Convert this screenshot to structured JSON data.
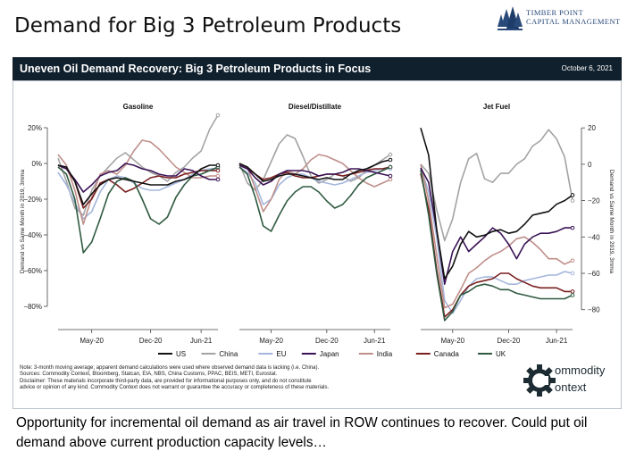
{
  "slide_title": "Demand for Big 3 Petroleum Products",
  "logo": {
    "line1": "TIMBER POINT",
    "line2": "CAPITAL MANAGEMENT",
    "icon": "tree-cluster-icon",
    "color": "#2a4a7a"
  },
  "banner": {
    "title": "Uneven Oil Demand Recovery: Big 3 Petroleum Products in Focus",
    "date": "October 6, 2021"
  },
  "footnote": [
    "Note: 3-month moving average; apparent demand calculations were used where observed demand data is lacking (i.e. China).",
    "Sources: Commodity Context, Bloomberg, Statcan, EIA, NBS, China Customs, PPAC, BEIS, METI, Eurostat.",
    "Disclaimer: These materials incorporate third-party data, are provided for informational purposes only, and do not constitute",
    "advice or opinion of any kind. Commodity Context does not warrant or guarantee the accuracy or completeness of these materials."
  ],
  "commodity_logo": {
    "line1": "ommodity",
    "line2": "ontext",
    "icon": "gear-icon"
  },
  "caption": "Opportunity for incremental oil demand as air travel in ROW continues to recover. Could put oil demand above current production capacity levels…",
  "chart_data": [
    {
      "type": "line",
      "title": "Gasoline",
      "ylabel": "Demand vs Same Month in 2019, 3mma",
      "ylim": [
        -90,
        25
      ],
      "yticks": [
        20,
        0,
        -20,
        -40,
        -60,
        -80
      ],
      "ytick_labels": [
        "20%",
        "0%",
        "−20%",
        "−40%",
        "−60%",
        "−80%"
      ],
      "x": [
        "2020-01",
        "2020-02",
        "2020-03",
        "2020-04",
        "2020-05",
        "2020-06",
        "2020-07",
        "2020-08",
        "2020-09",
        "2020-10",
        "2020-11",
        "2020-12",
        "2021-01",
        "2021-02",
        "2021-03",
        "2021-04",
        "2021-05",
        "2021-06",
        "2021-07",
        "2021-08"
      ],
      "xticks": [
        "2020-05",
        "2020-12",
        "2021-06"
      ],
      "xtick_labels": [
        "May-20",
        "Dec-20",
        "Jun-21"
      ],
      "series": [
        {
          "name": "US",
          "values": [
            -1,
            -2,
            -10,
            -23,
            -17,
            -12,
            -9,
            -8,
            -9,
            -10,
            -11,
            -12,
            -12,
            -12,
            -10,
            -9,
            -7,
            -3,
            -1,
            -1
          ]
        },
        {
          "name": "China",
          "values": [
            3,
            -10,
            -25,
            -29,
            -15,
            -7,
            -2,
            3,
            6,
            2,
            -2,
            -5,
            -7,
            -10,
            -5,
            -2,
            3,
            7,
            19,
            27
          ]
        },
        {
          "name": "EU",
          "values": [
            -5,
            -12,
            -22,
            -31,
            -27,
            -16,
            -9,
            -7,
            -8,
            -11,
            -14,
            -15,
            -15,
            -13,
            -11,
            -9,
            -6,
            -4,
            -3,
            -3
          ]
        },
        {
          "name": "Japan",
          "values": [
            -1,
            -3,
            -9,
            -16,
            -12,
            -7,
            -5,
            -4,
            0,
            -1,
            -3,
            -4,
            -6,
            -7,
            -7,
            -3,
            -4,
            -7,
            -9,
            -9
          ]
        },
        {
          "name": "India",
          "values": [
            5,
            -1,
            -15,
            -34,
            -19,
            -6,
            -4,
            -6,
            -1,
            7,
            13,
            12,
            8,
            3,
            -2,
            -5,
            -8,
            -8,
            -7,
            -7
          ]
        },
        {
          "name": "Canada",
          "values": [
            -1,
            -3,
            -10,
            -25,
            -20,
            -11,
            -9,
            -12,
            -16,
            -14,
            -11,
            -8,
            -7,
            -8,
            -8,
            -6,
            -5,
            -4,
            -4,
            -4
          ]
        },
        {
          "name": "UK",
          "values": [
            -2,
            -6,
            -20,
            -50,
            -44,
            -31,
            -17,
            -10,
            -8,
            -10,
            -20,
            -31,
            -34,
            -30,
            -19,
            -12,
            -7,
            -6,
            -4,
            -2
          ]
        }
      ]
    },
    {
      "type": "line",
      "title": "Diesel/Distillate",
      "ylim": [
        -90,
        25
      ],
      "x": [
        "2020-01",
        "2020-02",
        "2020-03",
        "2020-04",
        "2020-05",
        "2020-06",
        "2020-07",
        "2020-08",
        "2020-09",
        "2020-10",
        "2020-11",
        "2020-12",
        "2021-01",
        "2021-02",
        "2021-03",
        "2021-04",
        "2021-05",
        "2021-06",
        "2021-07",
        "2021-08"
      ],
      "xticks": [
        "2020-05",
        "2020-12",
        "2021-06"
      ],
      "xtick_labels": [
        "May-20",
        "Dec-20",
        "Jun-21"
      ],
      "series": [
        {
          "name": "US",
          "values": [
            0,
            -2,
            -6,
            -10,
            -9,
            -7,
            -6,
            -6,
            -7,
            -8,
            -9,
            -8,
            -9,
            -9,
            -6,
            -4,
            -3,
            -1,
            1,
            2
          ]
        },
        {
          "name": "China",
          "values": [
            0,
            -11,
            -15,
            -9,
            1,
            11,
            16,
            14,
            4,
            -7,
            -11,
            -9,
            -6,
            -7,
            -10,
            -8,
            -4,
            -1,
            2,
            5
          ]
        },
        {
          "name": "EU",
          "values": [
            -2,
            -5,
            -11,
            -23,
            -20,
            -12,
            -8,
            -6,
            -6,
            -8,
            -10,
            -11,
            -12,
            -11,
            -9,
            -7,
            -5,
            -4,
            -3,
            -3
          ]
        },
        {
          "name": "Japan",
          "values": [
            -1,
            -3,
            -8,
            -12,
            -10,
            -6,
            -4,
            -4,
            -4,
            -5,
            -7,
            -6,
            -6,
            -5,
            -3,
            -3,
            -4,
            -5,
            -6,
            -7
          ]
        },
        {
          "name": "India",
          "values": [
            -1,
            -2,
            -14,
            -27,
            -20,
            -9,
            -4,
            -6,
            -3,
            2,
            5,
            4,
            2,
            0,
            -4,
            -8,
            -11,
            -13,
            -11,
            -9
          ]
        },
        {
          "name": "Canada",
          "values": [
            -1,
            -3,
            -6,
            -9,
            -8,
            -6,
            -5,
            -7,
            -8,
            -8,
            -7,
            -6,
            -6,
            -7,
            -6,
            -5,
            -4,
            -3,
            -3,
            -2
          ]
        },
        {
          "name": "UK",
          "values": [
            -2,
            -6,
            -19,
            -35,
            -38,
            -29,
            -21,
            -16,
            -13,
            -13,
            -16,
            -21,
            -25,
            -23,
            -18,
            -12,
            -8,
            -6,
            -4,
            -2
          ]
        }
      ]
    },
    {
      "type": "line",
      "title": "Jet Fuel",
      "ylabel": "Demand vs Same Month in 2019, 3mma",
      "ylim": [
        -88,
        25
      ],
      "yticks": [
        20,
        0,
        -20,
        -40,
        -60,
        -80
      ],
      "ytick_labels": [
        "20",
        "0",
        "−20",
        "−40",
        "−60",
        "−80"
      ],
      "x": [
        "2020-01",
        "2020-02",
        "2020-03",
        "2020-04",
        "2020-05",
        "2020-06",
        "2020-07",
        "2020-08",
        "2020-09",
        "2020-10",
        "2020-11",
        "2020-12",
        "2021-01",
        "2021-02",
        "2021-03",
        "2021-04",
        "2021-05",
        "2021-06",
        "2021-07",
        "2021-08"
      ],
      "xticks": [
        "2020-05",
        "2020-12",
        "2021-06"
      ],
      "xtick_labels": [
        "May-20",
        "Dec-20",
        "Jun-21"
      ],
      "series": [
        {
          "name": "US",
          "values": [
            20,
            5,
            -36,
            -63,
            -56,
            -44,
            -37,
            -40,
            -39,
            -37,
            -36,
            -38,
            -37,
            -33,
            -28,
            -27,
            -26,
            -22,
            -20,
            -17
          ]
        },
        {
          "name": "China",
          "values": [
            0,
            -5,
            -25,
            -42,
            -30,
            -10,
            3,
            6,
            -8,
            -10,
            -5,
            -5,
            0,
            3,
            10,
            13,
            19,
            14,
            4,
            -20
          ]
        },
        {
          "name": "EU",
          "values": [
            -2,
            -15,
            -40,
            -75,
            -82,
            -75,
            -67,
            -63,
            -62,
            -62,
            -64,
            -66,
            -66,
            -64,
            -63,
            -62,
            -61,
            -61,
            -59,
            -60
          ]
        },
        {
          "name": "Japan",
          "values": [
            -2,
            -10,
            -36,
            -66,
            -48,
            -40,
            -48,
            -44,
            -40,
            -35,
            -38,
            -44,
            -52,
            -44,
            -40,
            -38,
            -38,
            -37,
            -35,
            -35
          ]
        },
        {
          "name": "India",
          "values": [
            0,
            -20,
            -50,
            -79,
            -77,
            -69,
            -60,
            -57,
            -53,
            -50,
            -48,
            -45,
            -41,
            -40,
            -43,
            -47,
            -52,
            -52,
            -55,
            -53
          ]
        },
        {
          "name": "Canada",
          "values": [
            -5,
            -25,
            -58,
            -84,
            -80,
            -72,
            -67,
            -65,
            -64,
            -63,
            -60,
            -60,
            -63,
            -65,
            -67,
            -68,
            -68,
            -68,
            -70,
            -70
          ]
        },
        {
          "name": "UK",
          "values": [
            -3,
            -28,
            -60,
            -86,
            -81,
            -72,
            -70,
            -67,
            -66,
            -67,
            -69,
            -69,
            -71,
            -72,
            -73,
            -74,
            -74,
            -74,
            -74,
            -72
          ]
        }
      ]
    }
  ],
  "legend": [
    {
      "name": "US",
      "color": "#111111"
    },
    {
      "name": "China",
      "color": "#a3a3a3"
    },
    {
      "name": "EU",
      "color": "#a4b6dc"
    },
    {
      "name": "Japan",
      "color": "#3a1356"
    },
    {
      "name": "India",
      "color": "#bf8f8a"
    },
    {
      "name": "Canada",
      "color": "#7a1f1f"
    },
    {
      "name": "UK",
      "color": "#2f5a40"
    }
  ]
}
